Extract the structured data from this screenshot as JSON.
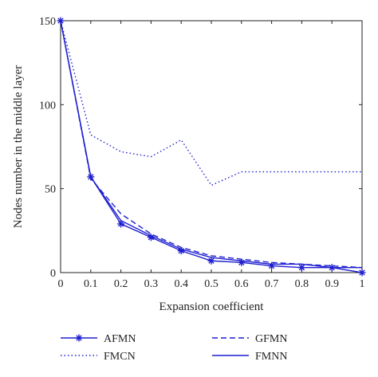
{
  "chart_data": {
    "type": "line",
    "xlabel": "Expansion coefficient",
    "ylabel": "Nodes number in the middle layer",
    "xlim": [
      0,
      1
    ],
    "ylim": [
      0,
      150
    ],
    "x_ticks": [
      "0",
      "0.1",
      "0.2",
      "0.3",
      "0.4",
      "0.5",
      "0.6",
      "0.7",
      "0.8",
      "0.9",
      "1"
    ],
    "y_ticks": [
      "0",
      "50",
      "100",
      "150"
    ],
    "x": [
      0,
      0.1,
      0.2,
      0.3,
      0.4,
      0.5,
      0.6,
      0.7,
      0.8,
      0.9,
      1.0
    ],
    "legend_position": "bottom",
    "series": [
      {
        "name": "AFMN",
        "color": "#1f1fd0",
        "style": "solid",
        "marker": "star",
        "values": [
          150,
          57,
          29,
          21,
          13,
          7,
          6,
          4,
          3,
          3,
          0
        ]
      },
      {
        "name": "GFMN",
        "color": "#1f1fd0",
        "style": "dashed",
        "marker": "none",
        "values": [
          150,
          56,
          35,
          23,
          15,
          10,
          8,
          6,
          5,
          4,
          3
        ]
      },
      {
        "name": "FMCN",
        "color": "#1f1fd0",
        "style": "dotted",
        "marker": "none",
        "values": [
          150,
          82,
          72,
          69,
          79,
          52,
          60,
          60,
          60,
          60,
          60
        ]
      },
      {
        "name": "FMNN",
        "color": "#1f1fd0",
        "style": "solid",
        "marker": "none",
        "values": [
          150,
          57,
          31,
          22,
          14,
          9,
          7,
          5,
          5,
          3,
          3
        ]
      }
    ]
  }
}
